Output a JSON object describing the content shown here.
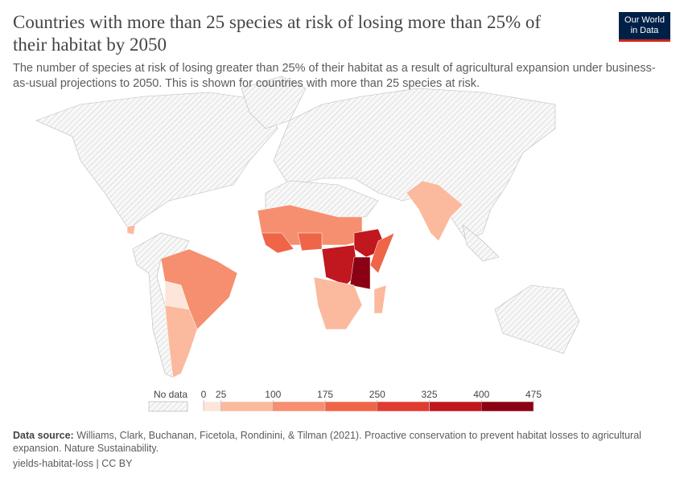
{
  "header": {
    "title": "Countries with more than 25 species at risk of losing more than 25% of their habitat by 2050",
    "subtitle": "The number of species at risk of losing greater than 25% of their habitat as a result of agricultural expansion under business-as-usual projections to 2050. This is shown for countries with more than 25 species at risk.",
    "logo": [
      "Our World",
      "in Data"
    ]
  },
  "legend": {
    "no_data": "No data",
    "ticks": [
      0,
      25,
      100,
      175,
      250,
      325,
      400,
      475
    ],
    "colors": [
      "#fde5d9",
      "#fbb99e",
      "#f68f6f",
      "#ef6548",
      "#e03c31",
      "#c1171f",
      "#8b0012"
    ]
  },
  "footer": {
    "source_label": "Data source:",
    "source": "Williams, Clark, Buchanan, Ficetola, Rondinini, & Tilman (2021). Proactive conservation to prevent habitat losses to agricultural expansion. Nature Sustainability.",
    "slug": "yields-habitat-loss | CC BY"
  }
}
